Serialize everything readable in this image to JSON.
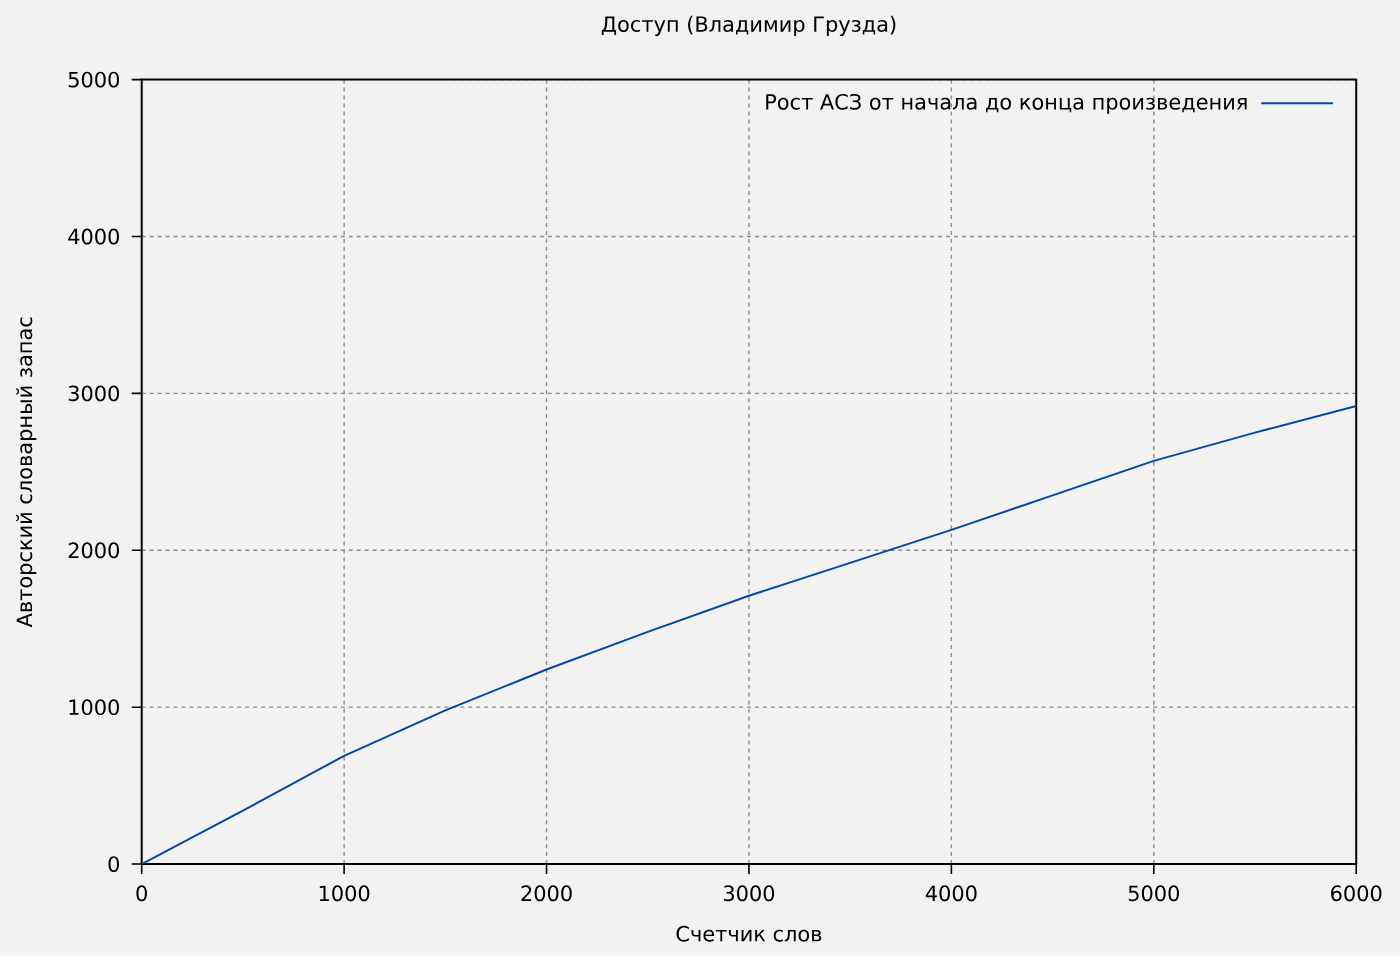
{
  "chart_data": {
    "type": "line",
    "title": "Доступ (Владимир Грузда)",
    "xlabel": "Счетчик слов",
    "ylabel": "Авторский словарный запас",
    "x": [
      0,
      500,
      1000,
      1500,
      2000,
      2500,
      3000,
      3500,
      4000,
      4500,
      5000,
      5500,
      6000
    ],
    "series": [
      {
        "name": "Рост АСЗ от начала до конца произведения",
        "color": "#0047ab",
        "values": [
          0,
          340,
          690,
          980,
          1240,
          1480,
          1710,
          1920,
          2130,
          2350,
          2570,
          2750,
          2920
        ]
      }
    ],
    "xlim": [
      0,
      6000
    ],
    "ylim": [
      0,
      5000
    ],
    "xticks": [
      0,
      1000,
      2000,
      3000,
      4000,
      5000,
      6000
    ],
    "yticks": [
      0,
      1000,
      2000,
      3000,
      4000,
      5000
    ],
    "grid": true,
    "legend": "top right"
  }
}
